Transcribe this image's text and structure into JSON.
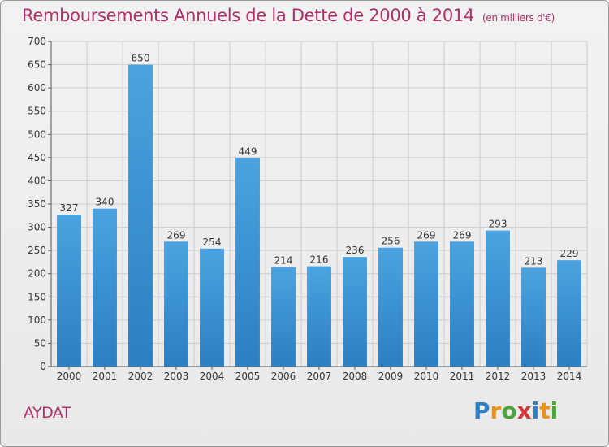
{
  "header": {
    "title": "Remboursements Annuels de la Dette de 2000 à 2014",
    "subtitle": "(en milliers d'€)"
  },
  "footer": {
    "commune": "AYDAT",
    "brand_letters": [
      "P",
      "r",
      "o",
      "x",
      "i",
      "t",
      "i"
    ],
    "brand_colors": [
      "#2f7fc6",
      "#e8921c",
      "#4aa33b",
      "#d23a3a",
      "#2f7fc6",
      "#e8921c",
      "#4aa33b"
    ]
  },
  "colors": {
    "bar": "#4aa3e0",
    "bar_dark": "#2b7fc3",
    "title": "#b0306a",
    "grid": "#cccccc",
    "text": "#333333"
  },
  "chart_data": {
    "type": "bar",
    "title": "Remboursements Annuels de la Dette de 2000 à 2014",
    "subtitle": "(en milliers d'€)",
    "categories": [
      "2000",
      "2001",
      "2002",
      "2003",
      "2004",
      "2005",
      "2006",
      "2007",
      "2008",
      "2009",
      "2010",
      "2011",
      "2012",
      "2013",
      "2014"
    ],
    "values": [
      327,
      340,
      650,
      269,
      254,
      449,
      214,
      216,
      236,
      256,
      269,
      269,
      293,
      213,
      229
    ],
    "ylim": [
      0,
      700
    ],
    "yticks": [
      0,
      50,
      100,
      150,
      200,
      250,
      300,
      350,
      400,
      450,
      500,
      550,
      600,
      650,
      700
    ],
    "grid": true,
    "data_labels": true
  }
}
